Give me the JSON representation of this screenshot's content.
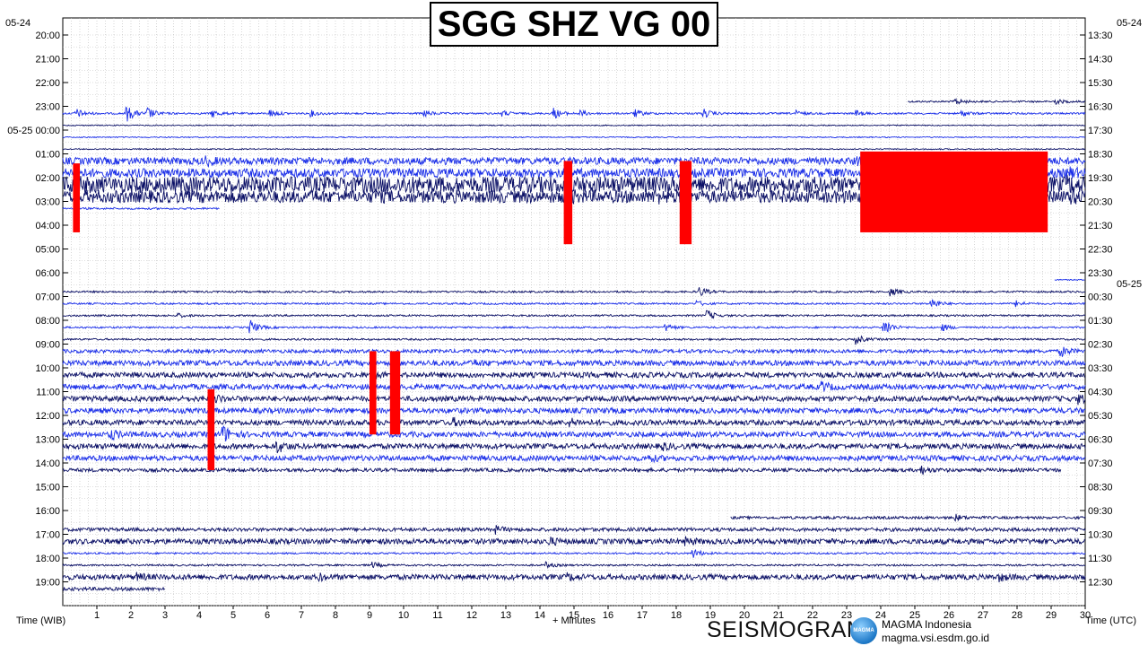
{
  "header": {
    "title": "SGG SHZ VG 00",
    "date_left_top": "05-24",
    "date_right_top": "05-24",
    "date_right_mid": "05-25"
  },
  "footer": {
    "left_label": "Time (WIB)",
    "center_label": "+ Minutes",
    "right_label": "Time (UTC)",
    "brand": "SEISMOGRAM",
    "logo_text": "MAGMA",
    "org_name": "MAGMA Indonesia",
    "org_url": "magma.vsi.esdm.go.id"
  },
  "colors": {
    "trace_dark": "#0b1066",
    "trace_blue": "#1a2ee8",
    "clip": "#ff0000",
    "grid": "#bdbdbd"
  },
  "chart_data": {
    "type": "line",
    "title": "SGG SHZ VG 00",
    "xlabel": "+ Minutes",
    "ylabel_left": "Time (WIB)",
    "ylabel_right": "Time (UTC)",
    "xlim": [
      0,
      30
    ],
    "x_ticks": [
      "1",
      "2",
      "3",
      "4",
      "5",
      "6",
      "7",
      "8",
      "9",
      "10",
      "11",
      "12",
      "13",
      "14",
      "15",
      "16",
      "17",
      "18",
      "19",
      "20",
      "21",
      "22",
      "23",
      "24",
      "25",
      "26",
      "27",
      "28",
      "29",
      "30"
    ],
    "row_interval_minutes": 30,
    "grid": true,
    "left_ticks": [
      {
        "row": 0,
        "label": "20:00"
      },
      {
        "row": 1,
        "label": "21:00"
      },
      {
        "row": 2,
        "label": "22:00"
      },
      {
        "row": 3,
        "label": "23:00"
      },
      {
        "row": 4,
        "label": "05-25 00:00"
      },
      {
        "row": 5,
        "label": "01:00"
      },
      {
        "row": 6,
        "label": "02:00"
      },
      {
        "row": 7,
        "label": "03:00"
      },
      {
        "row": 8,
        "label": "04:00"
      },
      {
        "row": 9,
        "label": "05:00"
      },
      {
        "row": 10,
        "label": "06:00"
      },
      {
        "row": 11,
        "label": "07:00"
      },
      {
        "row": 12,
        "label": "08:00"
      },
      {
        "row": 13,
        "label": "09:00"
      },
      {
        "row": 14,
        "label": "10:00"
      },
      {
        "row": 15,
        "label": "11:00"
      },
      {
        "row": 16,
        "label": "12:00"
      },
      {
        "row": 17,
        "label": "13:00"
      },
      {
        "row": 18,
        "label": "14:00"
      },
      {
        "row": 19,
        "label": "15:00"
      },
      {
        "row": 20,
        "label": "16:00"
      },
      {
        "row": 21,
        "label": "17:00"
      },
      {
        "row": 22,
        "label": "18:00"
      },
      {
        "row": 23,
        "label": "19:00"
      }
    ],
    "right_ticks": [
      {
        "row": 0,
        "label": "13:30"
      },
      {
        "row": 1,
        "label": "14:30"
      },
      {
        "row": 2,
        "label": "15:30"
      },
      {
        "row": 3,
        "label": "16:30"
      },
      {
        "row": 4,
        "label": "17:30"
      },
      {
        "row": 5,
        "label": "18:30"
      },
      {
        "row": 6,
        "label": "19:30"
      },
      {
        "row": 7,
        "label": "20:30"
      },
      {
        "row": 8,
        "label": "21:30"
      },
      {
        "row": 9,
        "label": "22:30"
      },
      {
        "row": 10,
        "label": "23:30"
      },
      {
        "row": 11,
        "label": "00:30"
      },
      {
        "row": 12,
        "label": "01:30"
      },
      {
        "row": 13,
        "label": "02:30"
      },
      {
        "row": 14,
        "label": "03:30"
      },
      {
        "row": 15,
        "label": "04:30"
      },
      {
        "row": 16,
        "label": "05:30"
      },
      {
        "row": 17,
        "label": "06:30"
      },
      {
        "row": 18,
        "label": "07:30"
      },
      {
        "row": 19,
        "label": "08:30"
      },
      {
        "row": 20,
        "label": "09:30"
      },
      {
        "row": 21,
        "label": "10:30"
      },
      {
        "row": 22,
        "label": "11:30"
      },
      {
        "row": 23,
        "label": "12:30"
      }
    ],
    "traces": [
      {
        "row": 2.8,
        "color": "dark",
        "start": 24.8,
        "end": 30,
        "amp": 1,
        "events": [
          [
            26.2,
            4
          ],
          [
            29.1,
            3
          ]
        ]
      },
      {
        "row": 3.3,
        "color": "blue",
        "start": 0,
        "end": 30,
        "amp": 1,
        "events": [
          [
            0.4,
            5
          ],
          [
            1.9,
            8
          ],
          [
            2.5,
            6
          ],
          [
            4.4,
            4
          ],
          [
            6.1,
            4
          ],
          [
            7.3,
            3
          ],
          [
            10.6,
            4
          ],
          [
            12.9,
            3
          ],
          [
            14.4,
            6
          ],
          [
            15.2,
            3
          ],
          [
            16.8,
            4
          ],
          [
            18.8,
            5
          ],
          [
            21.5,
            3
          ],
          [
            23.3,
            3
          ],
          [
            26.4,
            3
          ]
        ]
      },
      {
        "row": 3.8,
        "color": "dark",
        "start": 0,
        "end": 30,
        "amp": 0.6,
        "events": []
      },
      {
        "row": 4.3,
        "color": "blue",
        "start": 0,
        "end": 30,
        "amp": 0.6,
        "events": []
      },
      {
        "row": 4.8,
        "color": "dark",
        "start": 0,
        "end": 30,
        "amp": 0.6,
        "events": []
      },
      {
        "row": 5.3,
        "color": "blue",
        "start": 0,
        "end": 30,
        "amp": 4,
        "events": [
          [
            4.2,
            3
          ],
          [
            23.3,
            3
          ],
          [
            28.5,
            4
          ]
        ]
      },
      {
        "row": 5.8,
        "color": "blue",
        "start": 0,
        "end": 30,
        "amp": 5,
        "events": [
          [
            24.5,
            4
          ],
          [
            29.5,
            4
          ]
        ]
      },
      {
        "row": 6.3,
        "color": "dark",
        "start": 0,
        "end": 30,
        "amp": 9,
        "events": [
          [
            0.5,
            3
          ],
          [
            4.9,
            2
          ],
          [
            10,
            3
          ],
          [
            17.8,
            3
          ],
          [
            29.5,
            3
          ]
        ]
      },
      {
        "row": 6.8,
        "color": "dark",
        "start": 0,
        "end": 30,
        "amp": 7,
        "events": [
          [
            9.2,
            2
          ],
          [
            14.8,
            3
          ],
          [
            17.4,
            3
          ],
          [
            29.6,
            3
          ]
        ]
      },
      {
        "row": 7.3,
        "color": "blue",
        "start": 0,
        "end": 4.6,
        "amp": 1,
        "events": []
      },
      {
        "row": 10.3,
        "color": "blue",
        "start": 29.1,
        "end": 30,
        "amp": 0.6,
        "events": []
      },
      {
        "row": 10.8,
        "color": "dark",
        "start": 0,
        "end": 30,
        "amp": 1,
        "events": [
          [
            18.7,
            5
          ],
          [
            24.3,
            4
          ]
        ]
      },
      {
        "row": 11.3,
        "color": "blue",
        "start": 0,
        "end": 30,
        "amp": 1,
        "events": [
          [
            18.6,
            3
          ],
          [
            25.5,
            6
          ],
          [
            28,
            3
          ]
        ]
      },
      {
        "row": 11.8,
        "color": "dark",
        "start": 0,
        "end": 30,
        "amp": 1,
        "events": [
          [
            3.4,
            2
          ],
          [
            18.9,
            6
          ]
        ]
      },
      {
        "row": 12.3,
        "color": "blue",
        "start": 0,
        "end": 30,
        "amp": 1,
        "events": [
          [
            5.5,
            8
          ],
          [
            17.7,
            4
          ],
          [
            24.1,
            10
          ],
          [
            25.8,
            4
          ]
        ]
      },
      {
        "row": 12.8,
        "color": "dark",
        "start": 0,
        "end": 30,
        "amp": 1,
        "events": [
          [
            23.3,
            5
          ]
        ]
      },
      {
        "row": 13.3,
        "color": "blue",
        "start": 0,
        "end": 30,
        "amp": 2,
        "events": [
          [
            29.3,
            5
          ]
        ]
      },
      {
        "row": 13.8,
        "color": "blue",
        "start": 0,
        "end": 30,
        "amp": 3,
        "events": [
          [
            12.1,
            2
          ]
        ]
      },
      {
        "row": 14.3,
        "color": "dark",
        "start": 0,
        "end": 30,
        "amp": 3,
        "events": [
          [
            9.1,
            3
          ]
        ]
      },
      {
        "row": 14.8,
        "color": "blue",
        "start": 0,
        "end": 30,
        "amp": 3,
        "events": [
          [
            22.3,
            4
          ]
        ]
      },
      {
        "row": 15.3,
        "color": "dark",
        "start": 0,
        "end": 30,
        "amp": 3,
        "events": [
          [
            4.5,
            3
          ],
          [
            29.8,
            4
          ]
        ]
      },
      {
        "row": 15.8,
        "color": "blue",
        "start": 0,
        "end": 30,
        "amp": 3,
        "events": []
      },
      {
        "row": 16.3,
        "color": "dark",
        "start": 0,
        "end": 30,
        "amp": 3,
        "events": [
          [
            11.5,
            3
          ],
          [
            14.9,
            3
          ]
        ]
      },
      {
        "row": 16.8,
        "color": "blue",
        "start": 0,
        "end": 30,
        "amp": 3,
        "events": [
          [
            1.4,
            5
          ],
          [
            4.7,
            9
          ]
        ]
      },
      {
        "row": 17.3,
        "color": "dark",
        "start": 0,
        "end": 30,
        "amp": 3,
        "events": [
          [
            6.3,
            6
          ],
          [
            17.6,
            3
          ]
        ]
      },
      {
        "row": 17.8,
        "color": "blue",
        "start": 0,
        "end": 30,
        "amp": 3,
        "events": [
          [
            17.2,
            3
          ]
        ]
      },
      {
        "row": 18.3,
        "color": "dark",
        "start": 0,
        "end": 29.3,
        "amp": 2,
        "events": [
          [
            25.2,
            4
          ]
        ]
      },
      {
        "row": 20.3,
        "color": "dark",
        "start": 19.6,
        "end": 30,
        "amp": 1.5,
        "events": [
          [
            26.2,
            3
          ]
        ]
      },
      {
        "row": 20.8,
        "color": "dark",
        "start": 0,
        "end": 30,
        "amp": 2,
        "events": [
          [
            12.6,
            6
          ]
        ]
      },
      {
        "row": 21.3,
        "color": "dark",
        "start": 0,
        "end": 30,
        "amp": 3,
        "events": [
          [
            14.3,
            3
          ],
          [
            18.3,
            3
          ]
        ]
      },
      {
        "row": 21.8,
        "color": "blue",
        "start": 0,
        "end": 30,
        "amp": 1,
        "events": [
          [
            18.5,
            5
          ]
        ]
      },
      {
        "row": 22.3,
        "color": "dark",
        "start": 0,
        "end": 30,
        "amp": 1,
        "events": [
          [
            9.1,
            3
          ],
          [
            14.2,
            3
          ]
        ]
      },
      {
        "row": 22.8,
        "color": "dark",
        "start": 0,
        "end": 30,
        "amp": 3,
        "events": [
          [
            2.2,
            3
          ],
          [
            7.5,
            3
          ],
          [
            14.8,
            3
          ],
          [
            27.5,
            3
          ]
        ]
      },
      {
        "row": 23.3,
        "color": "dark",
        "start": 0,
        "end": 3,
        "amp": 2,
        "events": []
      }
    ],
    "clipped_events": [
      {
        "x0": 0.3,
        "x1": 0.5,
        "row0": 5.4,
        "row1": 8.3
      },
      {
        "x0": 14.7,
        "x1": 14.95,
        "row0": 5.3,
        "row1": 8.8
      },
      {
        "x0": 18.1,
        "x1": 18.45,
        "row0": 5.3,
        "row1": 8.8
      },
      {
        "x0": 23.4,
        "x1": 27,
        "row0": 4.9,
        "row1": 8.3
      },
      {
        "x0": 27,
        "x1": 28.9,
        "row0": 4.9,
        "row1": 8.3
      },
      {
        "x0": 9,
        "x1": 9.2,
        "row0": 13.3,
        "row1": 16.8
      },
      {
        "x0": 9.6,
        "x1": 9.9,
        "row0": 13.3,
        "row1": 16.8
      },
      {
        "x0": 4.25,
        "x1": 4.45,
        "row0": 14.9,
        "row1": 18.3
      }
    ]
  }
}
